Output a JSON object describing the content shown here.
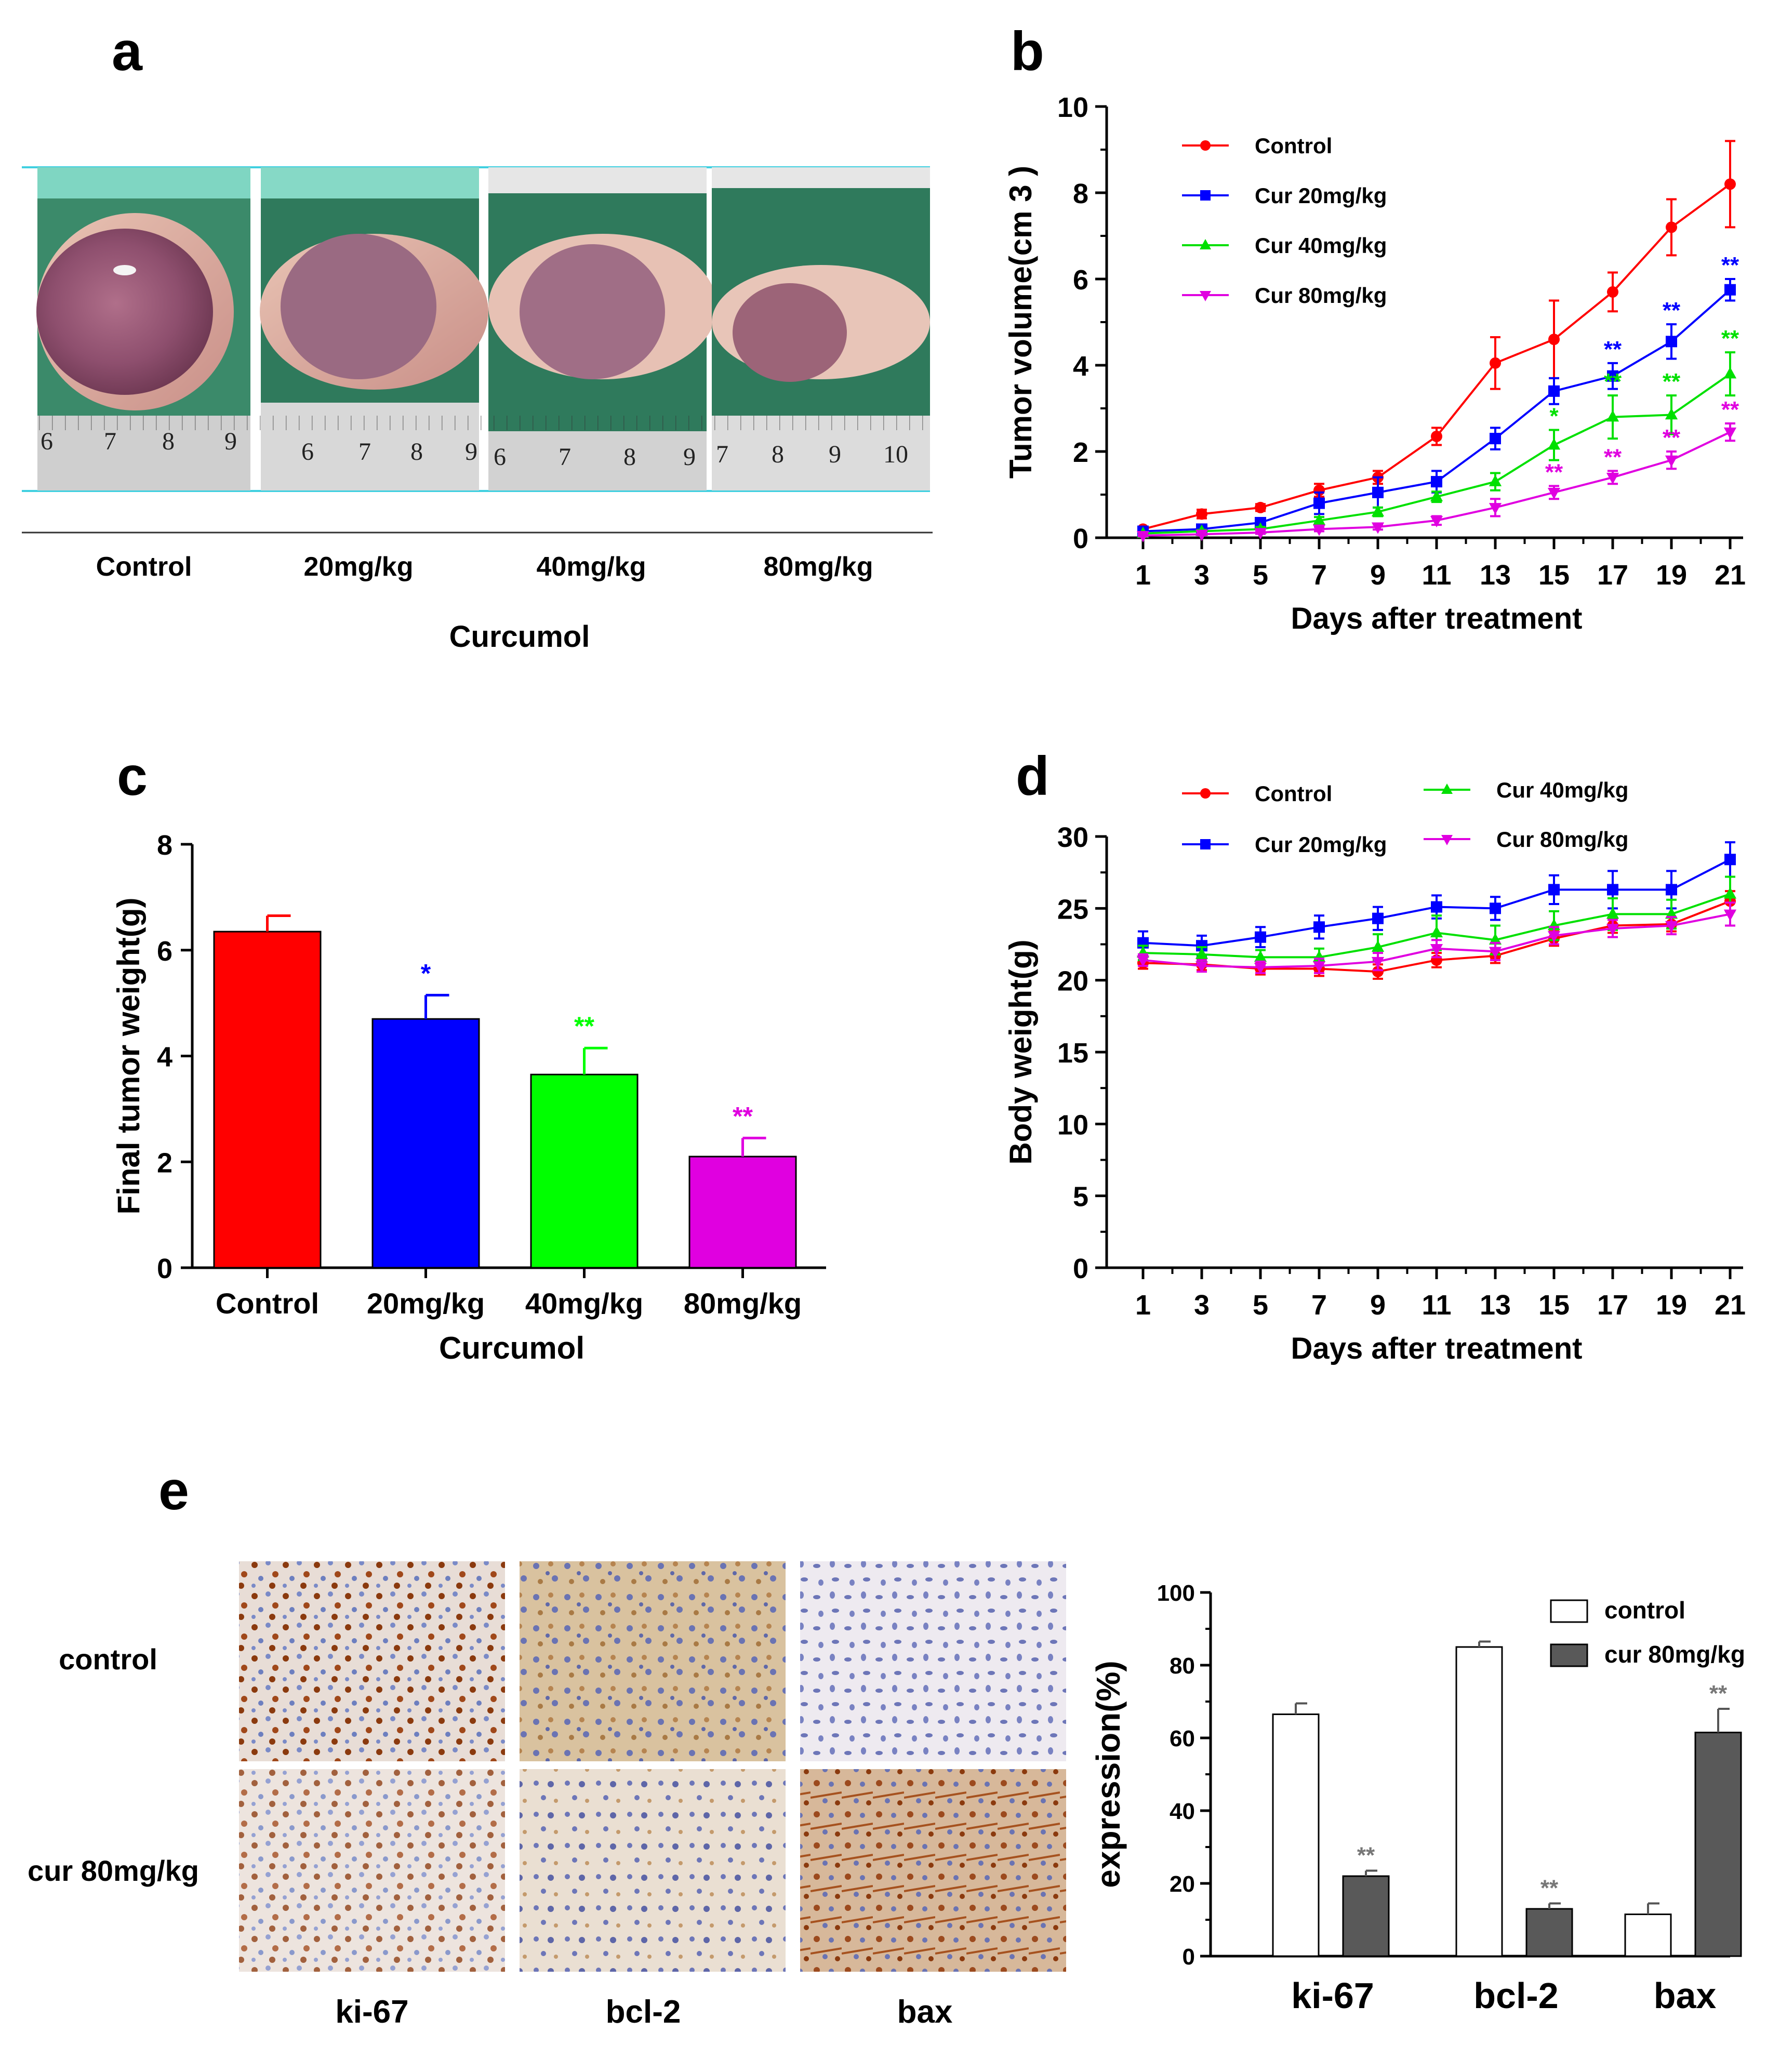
{
  "figure": {
    "panel_letters": [
      "a",
      "b",
      "c",
      "d",
      "e"
    ]
  },
  "panel_a": {
    "groups": [
      "Control",
      "20mg/kg",
      "40mg/kg",
      "80mg/kg"
    ],
    "xlabel": "Curcumol",
    "ruler_numbers": [
      [
        "6",
        "7",
        "8",
        "9"
      ],
      [
        "6",
        "7",
        "8",
        "9"
      ],
      [
        "6",
        "7",
        "8",
        "9"
      ],
      [
        "7",
        "8",
        "9",
        "10"
      ]
    ]
  },
  "panel_e_images": {
    "row_labels": [
      "control",
      "cur 80mg/kg"
    ],
    "col_labels": [
      "ki-67",
      "bcl-2",
      "bax"
    ]
  },
  "colors": {
    "control": "#ff0000",
    "cur20": "#0000ff",
    "cur40": "#00e000",
    "cur80": "#e000e0",
    "cur80_ihc": "#595959"
  },
  "chart_data": [
    {
      "id": "b",
      "type": "line",
      "title": "",
      "xlabel": "Days after treatment",
      "ylabel": "Tumor volume(cm 3 )",
      "x": [
        1,
        3,
        5,
        7,
        9,
        11,
        13,
        15,
        17,
        19,
        21
      ],
      "xticks": [
        "1",
        "3",
        "5",
        "7",
        "9",
        "11",
        "13",
        "15",
        "17",
        "19",
        "21"
      ],
      "yticks": [
        "0",
        "2",
        "4",
        "6",
        "8",
        "10"
      ],
      "ylim": [
        0,
        10
      ],
      "legend": "top-left",
      "series": [
        {
          "name": "Control",
          "color": "#ff0000",
          "marker": "circle",
          "values": [
            0.2,
            0.55,
            0.7,
            1.1,
            1.4,
            2.35,
            4.05,
            4.6,
            5.7,
            7.2,
            8.2
          ],
          "errors": [
            0.05,
            0.1,
            0.08,
            0.15,
            0.15,
            0.2,
            0.6,
            0.9,
            0.45,
            0.65,
            1.0
          ],
          "sig": [
            "",
            "",
            "",
            "",
            "",
            "",
            "",
            "",
            "",
            "",
            ""
          ]
        },
        {
          "name": "Cur 20mg/kg",
          "color": "#0000ff",
          "marker": "square",
          "values": [
            0.15,
            0.2,
            0.35,
            0.8,
            1.05,
            1.3,
            2.3,
            3.4,
            3.75,
            4.55,
            5.75
          ],
          "errors": [
            0.05,
            0.05,
            0.08,
            0.25,
            0.35,
            0.25,
            0.25,
            0.3,
            0.3,
            0.4,
            0.25
          ],
          "sig": [
            "",
            "",
            "",
            "",
            "",
            "",
            "",
            "",
            "**",
            "**",
            "**"
          ]
        },
        {
          "name": "Cur 40mg/kg",
          "color": "#00e000",
          "marker": "triangle-up",
          "values": [
            0.1,
            0.15,
            0.2,
            0.4,
            0.6,
            0.95,
            1.3,
            2.15,
            2.8,
            2.85,
            3.8
          ],
          "errors": [
            0.03,
            0.03,
            0.05,
            0.08,
            0.1,
            0.12,
            0.2,
            0.35,
            0.5,
            0.45,
            0.5
          ],
          "sig": [
            "",
            "",
            "",
            "",
            "",
            "",
            "",
            "*",
            "**",
            "**",
            "**"
          ]
        },
        {
          "name": "Cur 80mg/kg",
          "color": "#e000e0",
          "marker": "triangle-down",
          "values": [
            0.05,
            0.08,
            0.12,
            0.2,
            0.25,
            0.4,
            0.7,
            1.05,
            1.4,
            1.8,
            2.45
          ],
          "errors": [
            0.02,
            0.02,
            0.03,
            0.05,
            0.06,
            0.1,
            0.2,
            0.15,
            0.15,
            0.2,
            0.2
          ],
          "sig": [
            "",
            "",
            "",
            "",
            "",
            "",
            "",
            "**",
            "**",
            "**",
            "**"
          ]
        }
      ]
    },
    {
      "id": "c",
      "type": "bar",
      "title": "",
      "xlabel": "Curcumol",
      "ylabel": "Final tumor weight(g)",
      "categories": [
        "Control",
        "20mg/kg",
        "40mg/kg",
        "80mg/kg"
      ],
      "values": [
        6.35,
        4.7,
        3.65,
        2.1
      ],
      "errors": [
        0.3,
        0.45,
        0.5,
        0.35
      ],
      "sig": [
        "",
        "*",
        "**",
        "**"
      ],
      "colors": [
        "#ff0000",
        "#0000ff",
        "#00ff00",
        "#e000e0"
      ],
      "yticks": [
        "0",
        "2",
        "4",
        "6",
        "8"
      ],
      "ylim": [
        0,
        8
      ]
    },
    {
      "id": "d",
      "type": "line",
      "title": "",
      "xlabel": "Days after treatment",
      "ylabel": "Body weight(g)",
      "x": [
        1,
        3,
        5,
        7,
        9,
        11,
        13,
        15,
        17,
        19,
        21
      ],
      "xticks": [
        "1",
        "3",
        "5",
        "7",
        "9",
        "11",
        "13",
        "15",
        "17",
        "19",
        "21"
      ],
      "yticks": [
        "0",
        "5",
        "10",
        "15",
        "20",
        "25",
        "30"
      ],
      "ylim": [
        0,
        30
      ],
      "legend": "top",
      "series": [
        {
          "name": "Control",
          "color": "#ff0000",
          "marker": "circle",
          "values": [
            21.2,
            21.1,
            20.8,
            20.8,
            20.6,
            21.4,
            21.7,
            22.9,
            23.8,
            23.9,
            25.5
          ],
          "errors": [
            0.4,
            0.4,
            0.4,
            0.5,
            0.5,
            0.5,
            0.5,
            0.5,
            0.5,
            0.5,
            0.7
          ]
        },
        {
          "name": "Cur 20mg/kg",
          "color": "#0000ff",
          "marker": "square",
          "values": [
            22.6,
            22.4,
            23.0,
            23.7,
            24.3,
            25.1,
            25.0,
            26.3,
            26.3,
            26.3,
            28.4
          ],
          "errors": [
            0.8,
            0.7,
            0.7,
            0.8,
            0.8,
            0.8,
            0.8,
            1.0,
            1.3,
            1.3,
            1.2
          ]
        },
        {
          "name": "Cur 40mg/kg",
          "color": "#00e000",
          "marker": "triangle-up",
          "values": [
            21.9,
            21.8,
            21.6,
            21.6,
            22.3,
            23.3,
            22.8,
            23.8,
            24.6,
            24.6,
            26.0
          ],
          "errors": [
            0.5,
            0.5,
            0.5,
            0.6,
            0.9,
            1.2,
            1.0,
            1.0,
            1.1,
            1.0,
            1.2
          ]
        },
        {
          "name": "Cur 80mg/kg",
          "color": "#e000e0",
          "marker": "triangle-down",
          "values": [
            21.4,
            21.0,
            20.9,
            21.0,
            21.3,
            22.2,
            22.0,
            23.1,
            23.6,
            23.8,
            24.6
          ],
          "errors": [
            0.4,
            0.4,
            0.4,
            0.5,
            0.6,
            0.6,
            0.6,
            0.6,
            0.6,
            0.6,
            0.8
          ]
        }
      ]
    },
    {
      "id": "e",
      "type": "bar",
      "title": "",
      "xlabel": "",
      "ylabel": "expression(%)",
      "categories": [
        "ki-67",
        "bcl-2",
        "bax"
      ],
      "yticks": [
        "0",
        "20",
        "40",
        "60",
        "80",
        "100"
      ],
      "ylim": [
        0,
        100
      ],
      "legend": "top-right",
      "series": [
        {
          "name": "control",
          "color": "#ffffff",
          "values": [
            66.5,
            85,
            11.5
          ],
          "errors": [
            3,
            1.5,
            3
          ],
          "sig": [
            "",
            "",
            ""
          ]
        },
        {
          "name": "cur 80mg/kg",
          "color": "#595959",
          "values": [
            22,
            13,
            61.5
          ],
          "errors": [
            1.5,
            1.5,
            6.5
          ],
          "sig": [
            "**",
            "**",
            "**"
          ]
        }
      ]
    }
  ]
}
